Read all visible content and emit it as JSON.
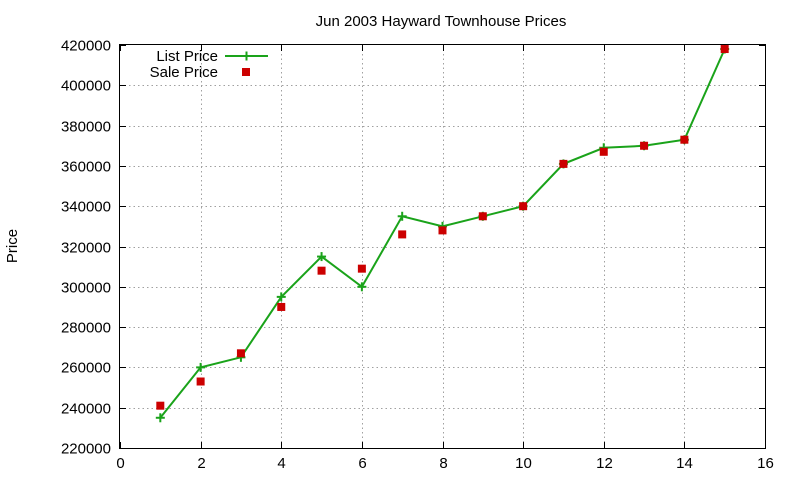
{
  "chart_data": {
    "type": "line",
    "title": "Jun 2003 Hayward Townhouse Prices",
    "xlabel": "",
    "ylabel": "Price",
    "xlim": [
      0,
      16
    ],
    "ylim": [
      220000,
      420000
    ],
    "xticks": [
      0,
      2,
      4,
      6,
      8,
      10,
      12,
      14,
      16
    ],
    "yticks": [
      220000,
      240000,
      260000,
      280000,
      300000,
      320000,
      340000,
      360000,
      380000,
      400000,
      420000
    ],
    "grid": true,
    "legend_position": "top-left",
    "x": [
      1,
      2,
      3,
      4,
      5,
      6,
      7,
      8,
      9,
      10,
      11,
      12,
      13,
      14,
      15
    ],
    "series": [
      {
        "name": "List Price",
        "style": "line-with-plus-markers",
        "color": "#1aa31a",
        "values": [
          235000,
          260000,
          265000,
          295000,
          315000,
          300000,
          335000,
          330000,
          335000,
          340000,
          361000,
          369000,
          370000,
          373000,
          418000
        ]
      },
      {
        "name": "Sale Price",
        "style": "square-markers",
        "color": "#cc0000",
        "values": [
          241000,
          253000,
          267000,
          290000,
          308000,
          309000,
          326000,
          328000,
          335000,
          340000,
          361000,
          367000,
          370000,
          373000,
          418000
        ]
      }
    ]
  }
}
